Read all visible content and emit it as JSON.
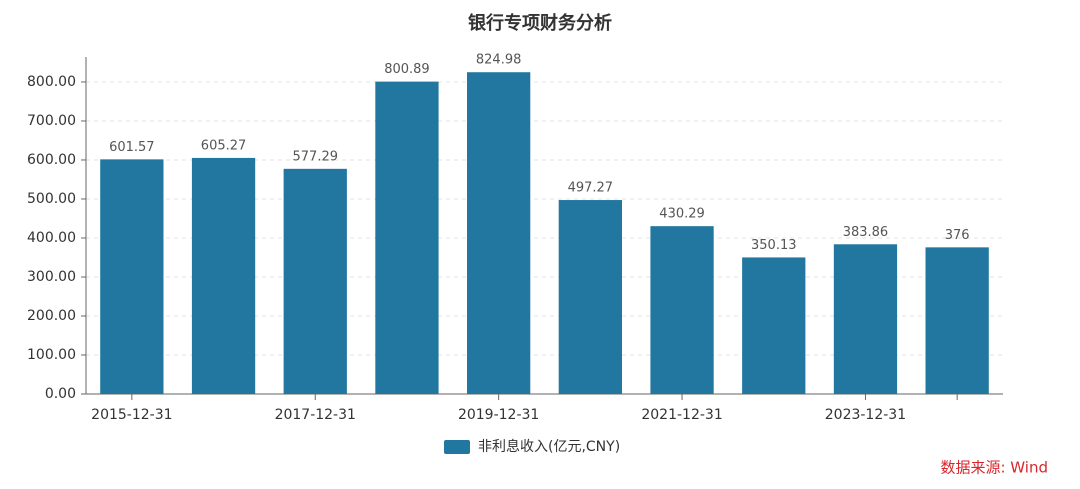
{
  "chart_data": {
    "type": "bar",
    "title": "银行专项财务分析",
    "categories": [
      "2015-12-31",
      null,
      "2017-12-31",
      null,
      "2019-12-31",
      null,
      "2021-12-31",
      null,
      "2023-12-31",
      null
    ],
    "series": [
      {
        "name": "非利息收入(亿元,CNY)",
        "color": "#21779f",
        "values": [
          601.57,
          605.27,
          577.29,
          800.89,
          824.98,
          497.27,
          430.29,
          350.13,
          383.86,
          376
        ]
      }
    ],
    "ylim": [
      0,
      864
    ],
    "yticks": [
      {
        "value": 0,
        "label": "0.00"
      },
      {
        "value": 100,
        "label": "100.00"
      },
      {
        "value": 200,
        "label": "200.00"
      },
      {
        "value": 300,
        "label": "300.00"
      },
      {
        "value": 400,
        "label": "400.00"
      },
      {
        "value": 500,
        "label": "500.00"
      },
      {
        "value": 600,
        "label": "600.00"
      },
      {
        "value": 700,
        "label": "700.00"
      },
      {
        "value": 800,
        "label": "800.00"
      }
    ],
    "grid": true,
    "legend": "bottom",
    "annotation": "数据来源: Wind"
  }
}
